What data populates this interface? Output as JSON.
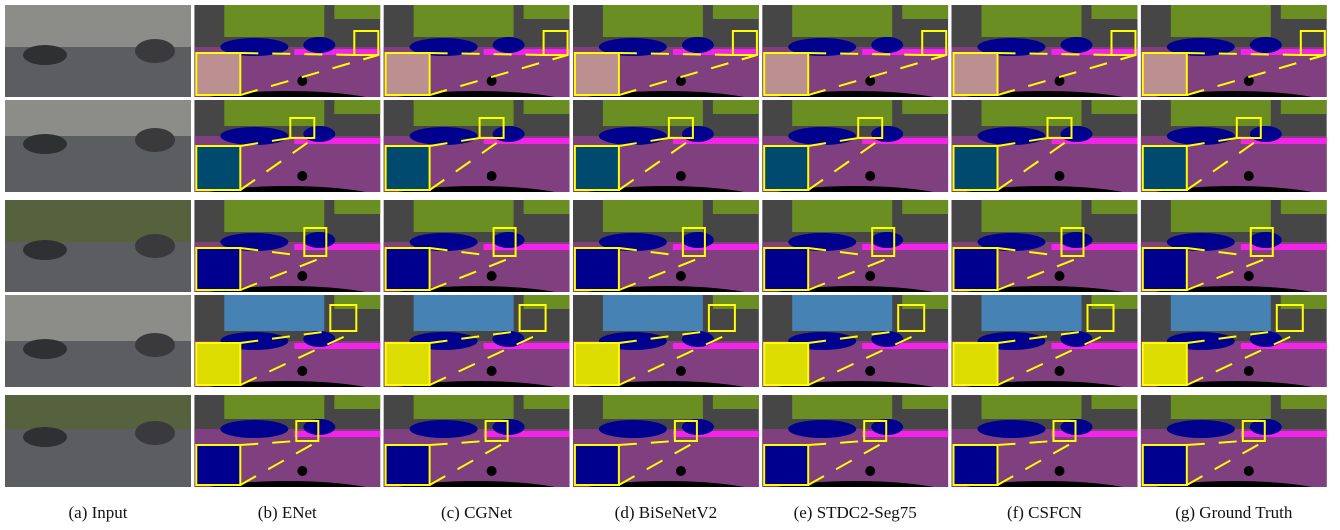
{
  "captions": [
    "(a) Input",
    "(b) ENet",
    "(c) CGNet",
    "(d) BiSeNetV2",
    "(e) STDC2-Seg75",
    "(f) CSFCN",
    "(g) Ground Truth"
  ]
}
